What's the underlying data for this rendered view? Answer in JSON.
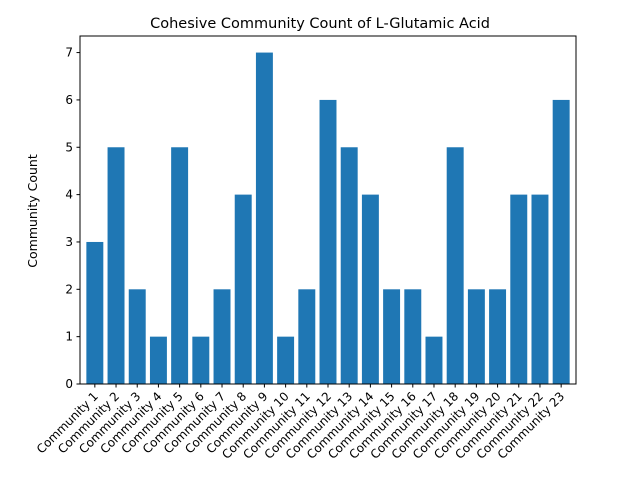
{
  "chart_data": {
    "type": "bar",
    "title": "Cohesive Community Count of L-Glutamic Acid",
    "xlabel": "",
    "ylabel": "Community Count",
    "categories": [
      "Community 1",
      "Community 2",
      "Community 3",
      "Community 4",
      "Community 5",
      "Community 6",
      "Community 7",
      "Community 8",
      "Community 9",
      "Community 10",
      "Community 11",
      "Community 12",
      "Community 13",
      "Community 14",
      "Community 15",
      "Community 16",
      "Community 17",
      "Community 18",
      "Community 19",
      "Community 20",
      "Community 21",
      "Community 22",
      "Community 23"
    ],
    "values": [
      3,
      5,
      2,
      1,
      5,
      1,
      2,
      4,
      7,
      1,
      2,
      6,
      5,
      4,
      2,
      2,
      1,
      5,
      2,
      2,
      4,
      4,
      6
    ],
    "ylim": [
      0,
      7.35
    ],
    "yticks": [
      0,
      1,
      2,
      3,
      4,
      5,
      6,
      7
    ],
    "grid": false,
    "colors": {
      "bar": "#1f77b4",
      "axis": "#000000"
    }
  }
}
